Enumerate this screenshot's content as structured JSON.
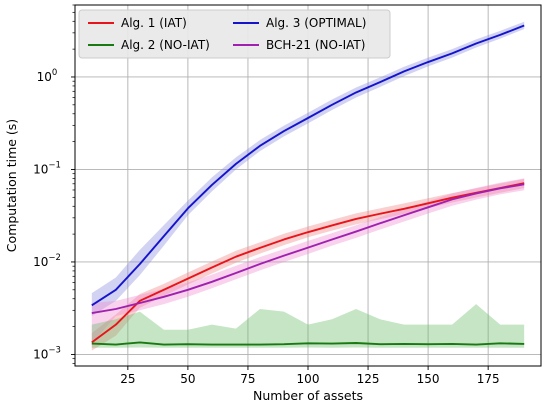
{
  "chart_data": {
    "type": "line",
    "xlabel": "Number of assets",
    "ylabel": "Computation time (s)",
    "xlim": [
      3,
      197
    ],
    "ylim": [
      0.00075,
      6.0
    ],
    "y_scale": "log",
    "grid": true,
    "legend_position": "top-left",
    "x_ticks": [
      25,
      50,
      75,
      100,
      125,
      150,
      175
    ],
    "y_ticks": [
      {
        "value": 0.001,
        "base": "10",
        "exp": "−3"
      },
      {
        "value": 0.01,
        "base": "10",
        "exp": "−2"
      },
      {
        "value": 0.1,
        "base": "10",
        "exp": "−1"
      },
      {
        "value": 1,
        "base": "10",
        "exp": "0"
      }
    ],
    "x": [
      10,
      20,
      30,
      40,
      50,
      60,
      70,
      80,
      90,
      100,
      110,
      120,
      130,
      140,
      150,
      160,
      170,
      180,
      190
    ],
    "series": [
      {
        "name": "Alg. 1 (IAT)",
        "color": "#e8141c",
        "fill": "#f08080",
        "values": [
          0.00135,
          0.0021,
          0.0038,
          0.005,
          0.0066,
          0.0087,
          0.0114,
          0.0142,
          0.0175,
          0.021,
          0.0248,
          0.0292,
          0.0332,
          0.0375,
          0.043,
          0.0495,
          0.056,
          0.063,
          0.071
        ],
        "lower": [
          0.0011,
          0.0016,
          0.0032,
          0.0043,
          0.0057,
          0.0075,
          0.0098,
          0.0123,
          0.0152,
          0.0185,
          0.0218,
          0.0255,
          0.029,
          0.033,
          0.0382,
          0.044,
          0.0498,
          0.056,
          0.063
        ],
        "upper": [
          0.0017,
          0.0027,
          0.0045,
          0.0058,
          0.0077,
          0.0101,
          0.0132,
          0.0163,
          0.0202,
          0.0242,
          0.0285,
          0.0335,
          0.038,
          0.043,
          0.0488,
          0.0555,
          0.0625,
          0.0705,
          0.079
        ]
      },
      {
        "name": "Alg. 2 (NO-IAT)",
        "color": "#1a7a12",
        "fill": "#66bb66",
        "values": [
          0.00131,
          0.00128,
          0.00135,
          0.00128,
          0.00129,
          0.00128,
          0.00128,
          0.00128,
          0.00129,
          0.00132,
          0.00131,
          0.00133,
          0.00129,
          0.0013,
          0.00129,
          0.0013,
          0.00128,
          0.00132,
          0.0013
        ],
        "lower": [
          0.00118,
          0.00118,
          0.00119,
          0.00118,
          0.00118,
          0.00118,
          0.00118,
          0.00118,
          0.00118,
          0.00119,
          0.00118,
          0.00119,
          0.00118,
          0.00118,
          0.00118,
          0.00118,
          0.00118,
          0.00118,
          0.00118
        ],
        "upper": [
          0.0021,
          0.0024,
          0.0029,
          0.00185,
          0.00185,
          0.0021,
          0.0019,
          0.0031,
          0.0029,
          0.0021,
          0.0024,
          0.0031,
          0.0024,
          0.0021,
          0.0021,
          0.0021,
          0.0035,
          0.0021,
          0.0021
        ]
      },
      {
        "name": "Alg. 3 (OPTIMAL)",
        "color": "#1414cc",
        "fill": "#8888e0",
        "values": [
          0.0034,
          0.005,
          0.0095,
          0.019,
          0.038,
          0.068,
          0.115,
          0.18,
          0.26,
          0.36,
          0.5,
          0.68,
          0.88,
          1.15,
          1.45,
          1.8,
          2.3,
          2.85,
          3.6
        ],
        "lower": [
          0.0026,
          0.0038,
          0.0072,
          0.015,
          0.032,
          0.058,
          0.1,
          0.158,
          0.228,
          0.315,
          0.44,
          0.6,
          0.78,
          1.02,
          1.3,
          1.62,
          2.08,
          2.6,
          3.3
        ],
        "upper": [
          0.0046,
          0.0068,
          0.0135,
          0.025,
          0.046,
          0.082,
          0.135,
          0.208,
          0.298,
          0.41,
          0.57,
          0.77,
          0.99,
          1.29,
          1.62,
          2.0,
          2.55,
          3.15,
          3.95
        ]
      },
      {
        "name": "BCH-21 (NO-IAT)",
        "color": "#a020b0",
        "fill": "#f08ad0",
        "values": [
          0.0028,
          0.0031,
          0.0036,
          0.0042,
          0.005,
          0.0061,
          0.0076,
          0.0095,
          0.0117,
          0.0143,
          0.0175,
          0.0213,
          0.0262,
          0.032,
          0.039,
          0.0475,
          0.055,
          0.0625,
          0.069
        ],
        "lower": [
          0.0013,
          0.0026,
          0.003,
          0.0035,
          0.0042,
          0.0052,
          0.0065,
          0.0081,
          0.01,
          0.0122,
          0.015,
          0.0182,
          0.0224,
          0.0274,
          0.0334,
          0.0405,
          0.0472,
          0.0538,
          0.0596
        ],
        "upper": [
          0.0036,
          0.0038,
          0.0044,
          0.0051,
          0.006,
          0.0073,
          0.0091,
          0.0113,
          0.0138,
          0.0169,
          0.0205,
          0.0249,
          0.0305,
          0.0372,
          0.0452,
          0.055,
          0.0632,
          0.072,
          0.08
        ]
      }
    ]
  },
  "legend": {
    "col1": [
      "Alg. 1 (IAT)",
      "Alg. 2 (NO-IAT)"
    ],
    "col2": [
      "Alg. 3 (OPTIMAL)",
      "BCH-21 (NO-IAT)"
    ]
  }
}
